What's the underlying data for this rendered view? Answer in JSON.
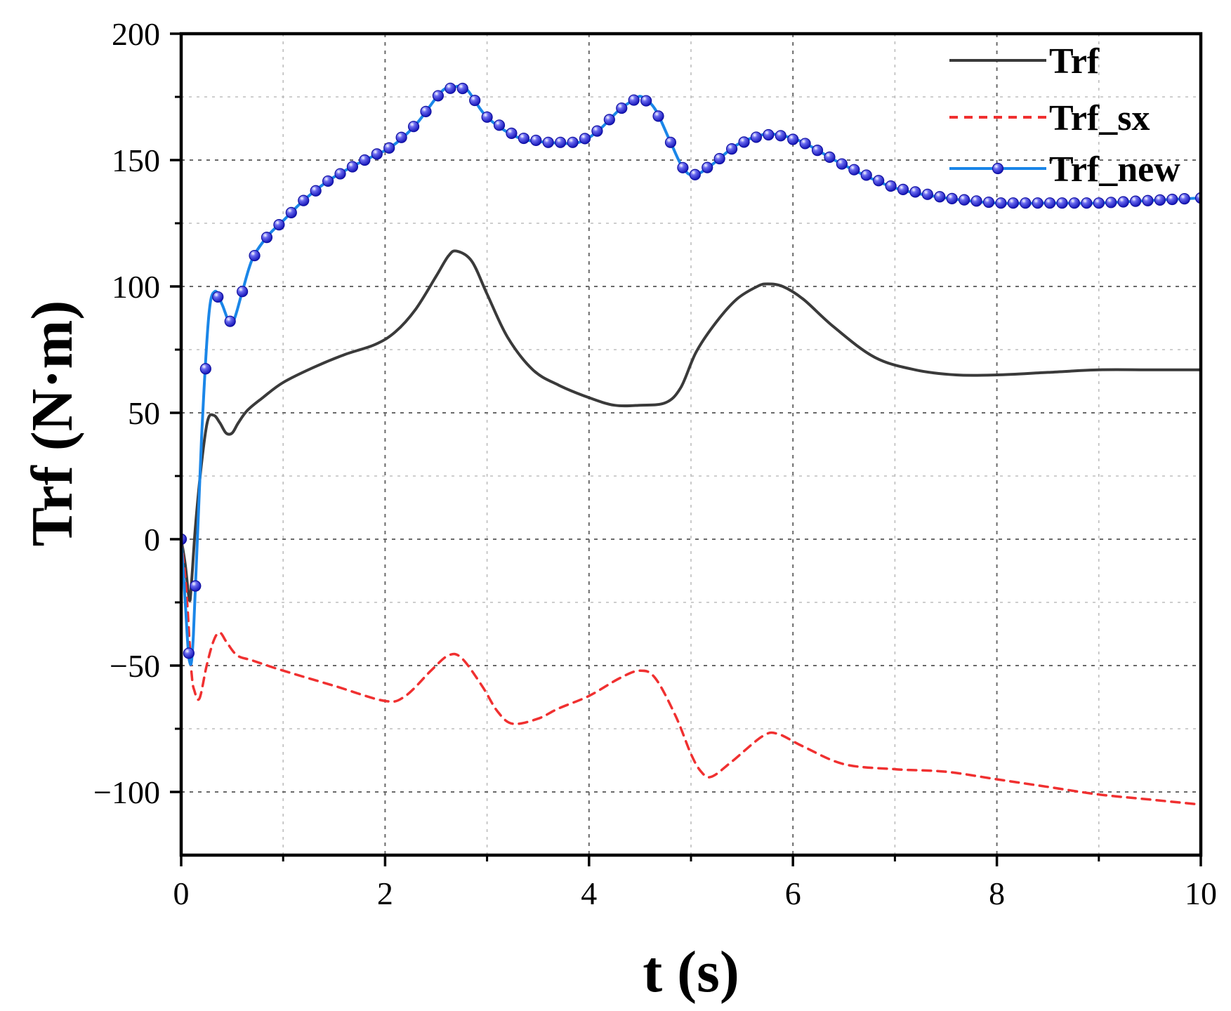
{
  "chart_data": {
    "type": "line",
    "title": "",
    "xlabel": "t (s)",
    "ylabel": "Trf (N·m)",
    "xlim": [
      0,
      10
    ],
    "ylim": [
      -125,
      200
    ],
    "xticks": [
      0,
      2,
      4,
      6,
      8,
      10
    ],
    "xtick_labels": [
      "0",
      "2",
      "4",
      "6",
      "8",
      "10"
    ],
    "yticks": [
      200,
      150,
      100,
      50,
      0,
      -50,
      -100
    ],
    "ytick_labels": [
      "200",
      "150",
      "100",
      "50",
      "0",
      "−50",
      "−100"
    ],
    "minor_xticks": [
      1,
      3,
      5,
      7,
      9
    ],
    "minor_yticks": [
      175,
      125,
      75,
      25,
      -25,
      -75
    ],
    "grid": true,
    "legend_position": "top-right",
    "series": [
      {
        "name": "Trf",
        "color": "#3a3a3a",
        "style": "solid",
        "marker": "none",
        "x": [
          0,
          0.04,
          0.08,
          0.1,
          0.14,
          0.2,
          0.26,
          0.32,
          0.38,
          0.44,
          0.5,
          0.56,
          0.65,
          0.8,
          1.0,
          1.3,
          1.6,
          1.9,
          2.1,
          2.3,
          2.5,
          2.62,
          2.7,
          2.85,
          3.0,
          3.2,
          3.45,
          3.7,
          4.0,
          4.25,
          4.5,
          4.75,
          4.9,
          5.05,
          5.25,
          5.45,
          5.65,
          5.75,
          5.9,
          6.1,
          6.4,
          6.8,
          7.2,
          7.6,
          8.0,
          8.5,
          9.0,
          9.5,
          10.0
        ],
        "y": [
          0,
          -10,
          -24,
          -18,
          5,
          30,
          47,
          49,
          46,
          42,
          42,
          46,
          51,
          56,
          62,
          68,
          73,
          77,
          82,
          91,
          104,
          112,
          114,
          110,
          97,
          80,
          67,
          61,
          56,
          53,
          53,
          54,
          60,
          74,
          86,
          95,
          100,
          101,
          100,
          95,
          84,
          72,
          67,
          65,
          65,
          66,
          67,
          67,
          67
        ]
      },
      {
        "name": "Trf_sx",
        "color": "#f03030",
        "style": "dashed",
        "marker": "none",
        "x": [
          0,
          0.05,
          0.1,
          0.13,
          0.18,
          0.25,
          0.32,
          0.38,
          0.45,
          0.55,
          0.7,
          1.0,
          1.5,
          2.0,
          2.2,
          2.45,
          2.62,
          2.75,
          2.95,
          3.1,
          3.25,
          3.5,
          3.7,
          4.0,
          4.3,
          4.5,
          4.65,
          4.85,
          5.0,
          5.1,
          5.2,
          5.4,
          5.7,
          5.85,
          6.1,
          6.5,
          7.0,
          7.5,
          8.0,
          8.5,
          9.0,
          9.5,
          10.0
        ],
        "y": [
          0,
          -20,
          -52,
          -60,
          -63,
          -50,
          -40,
          -37,
          -41,
          -46,
          -48,
          -52,
          -58,
          -64,
          -62,
          -52,
          -46,
          -47,
          -58,
          -68,
          -73,
          -71,
          -67,
          -62,
          -55,
          -52,
          -55,
          -70,
          -85,
          -92,
          -94,
          -88,
          -78,
          -77,
          -82,
          -89,
          -91,
          -92,
          -95,
          -98,
          -101,
          -103,
          -105
        ]
      },
      {
        "name": "Trf_new",
        "color": "#1a86e8",
        "style": "solid",
        "marker": "ball",
        "marker_color": "#2424d6",
        "x": [
          0,
          0.04,
          0.08,
          0.12,
          0.2,
          0.27,
          0.33,
          0.4,
          0.47,
          0.52,
          0.6,
          0.7,
          0.85,
          1.0,
          1.2,
          1.45,
          1.75,
          2.05,
          2.3,
          2.55,
          2.68,
          2.8,
          3.0,
          3.3,
          3.6,
          3.9,
          4.1,
          4.3,
          4.45,
          4.52,
          4.65,
          4.8,
          4.92,
          5.03,
          5.2,
          5.45,
          5.7,
          5.85,
          6.1,
          6.5,
          7.0,
          7.5,
          8.0,
          8.5,
          9.0,
          9.5,
          10.0
        ],
        "y": [
          0,
          -25,
          -48,
          -38,
          40,
          88,
          98,
          93,
          86,
          87,
          98,
          111,
          120,
          126,
          134,
          142,
          149,
          155,
          164,
          177,
          179,
          178,
          167,
          159,
          157,
          157,
          162,
          170,
          174,
          175,
          170,
          157,
          147,
          144,
          148,
          156,
          160,
          160,
          157,
          148,
          139,
          135,
          133,
          133,
          133,
          134,
          135
        ],
        "marker_x": [
          0,
          0.075,
          0.14,
          0.24,
          0.36,
          0.48,
          0.6,
          0.72,
          0.84,
          0.96,
          1.08,
          1.2,
          1.32,
          1.44,
          1.56,
          1.68,
          1.8,
          1.92,
          2.04,
          2.16,
          2.28,
          2.4,
          2.52,
          2.64,
          2.76,
          2.88,
          3.0,
          3.12,
          3.24,
          3.36,
          3.48,
          3.6,
          3.72,
          3.84,
          3.96,
          4.08,
          4.2,
          4.32,
          4.44,
          4.56,
          4.68,
          4.8,
          4.92,
          5.04,
          5.16,
          5.28,
          5.4,
          5.52,
          5.64,
          5.76,
          5.88,
          6.0,
          6.12,
          6.24,
          6.36,
          6.48,
          6.6,
          6.72,
          6.84,
          6.96,
          7.08,
          7.2,
          7.32,
          7.44,
          7.56,
          7.68,
          7.8,
          7.92,
          8.04,
          8.16,
          8.28,
          8.4,
          8.52,
          8.64,
          8.76,
          8.88,
          9.0,
          9.12,
          9.24,
          9.36,
          9.48,
          9.6,
          9.72,
          9.84,
          10.0
        ]
      }
    ]
  }
}
